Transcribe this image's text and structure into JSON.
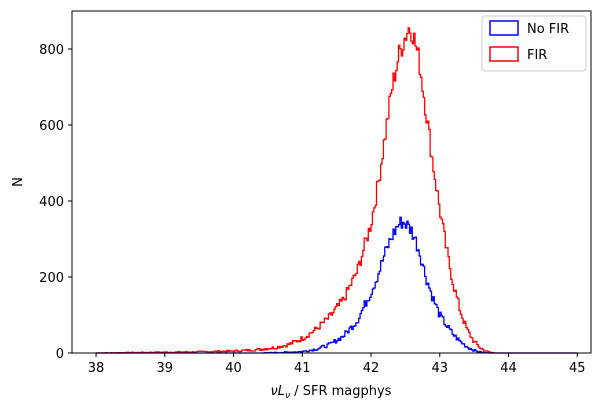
{
  "chart_data": {
    "type": "histogram",
    "xlabel_parts": {
      "pre": "ν",
      "L": "L",
      "sub": "ν",
      "post": " / SFR magphys"
    },
    "ylabel": "N",
    "xlim": [
      37.65,
      45.2
    ],
    "ylim": [
      0,
      900
    ],
    "xticks": [
      38,
      39,
      40,
      41,
      42,
      43,
      44,
      45
    ],
    "yticks": [
      0,
      200,
      400,
      600,
      800
    ],
    "legend": {
      "position": "upper right"
    },
    "series": [
      {
        "name": "No FIR",
        "color": "#0000ff",
        "peak_x": 42.45,
        "peak_y": 345,
        "profile": [
          [
            38.0,
            0
          ],
          [
            40.4,
            0
          ],
          [
            40.8,
            2
          ],
          [
            41.0,
            4
          ],
          [
            41.2,
            10
          ],
          [
            41.4,
            22
          ],
          [
            41.6,
            45
          ],
          [
            41.8,
            85
          ],
          [
            42.0,
            160
          ],
          [
            42.1,
            205
          ],
          [
            42.2,
            260
          ],
          [
            42.3,
            305
          ],
          [
            42.4,
            338
          ],
          [
            42.45,
            345
          ],
          [
            42.5,
            342
          ],
          [
            42.6,
            320
          ],
          [
            42.7,
            270
          ],
          [
            42.8,
            200
          ],
          [
            42.9,
            145
          ],
          [
            43.0,
            100
          ],
          [
            43.1,
            72
          ],
          [
            43.2,
            48
          ],
          [
            43.3,
            30
          ],
          [
            43.4,
            16
          ],
          [
            43.5,
            7
          ],
          [
            43.6,
            2
          ],
          [
            43.7,
            0
          ],
          [
            45.0,
            0
          ]
        ]
      },
      {
        "name": "FIR",
        "color": "#ff0000",
        "peak_x": 42.55,
        "peak_y": 855,
        "profile": [
          [
            38.0,
            0
          ],
          [
            38.5,
            1
          ],
          [
            39.0,
            2
          ],
          [
            39.5,
            3
          ],
          [
            40.0,
            5
          ],
          [
            40.3,
            8
          ],
          [
            40.6,
            14
          ],
          [
            40.8,
            22
          ],
          [
            41.0,
            38
          ],
          [
            41.2,
            62
          ],
          [
            41.4,
            95
          ],
          [
            41.6,
            140
          ],
          [
            41.8,
            215
          ],
          [
            42.0,
            340
          ],
          [
            42.1,
            440
          ],
          [
            42.2,
            565
          ],
          [
            42.3,
            690
          ],
          [
            42.4,
            780
          ],
          [
            42.5,
            835
          ],
          [
            42.55,
            855
          ],
          [
            42.6,
            850
          ],
          [
            42.7,
            770
          ],
          [
            42.8,
            640
          ],
          [
            42.9,
            500
          ],
          [
            43.0,
            380
          ],
          [
            43.1,
            270
          ],
          [
            43.2,
            180
          ],
          [
            43.3,
            110
          ],
          [
            43.4,
            60
          ],
          [
            43.5,
            30
          ],
          [
            43.6,
            12
          ],
          [
            43.7,
            3
          ],
          [
            43.8,
            0
          ],
          [
            45.0,
            0
          ]
        ]
      }
    ]
  }
}
